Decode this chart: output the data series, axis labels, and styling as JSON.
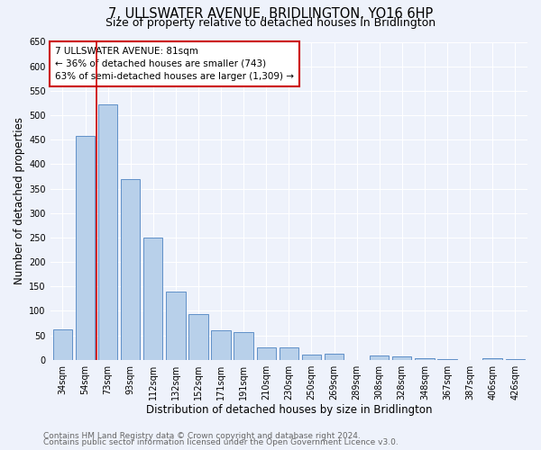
{
  "title": "7, ULLSWATER AVENUE, BRIDLINGTON, YO16 6HP",
  "subtitle": "Size of property relative to detached houses in Bridlington",
  "xlabel": "Distribution of detached houses by size in Bridlington",
  "ylabel": "Number of detached properties",
  "categories": [
    "34sqm",
    "54sqm",
    "73sqm",
    "93sqm",
    "112sqm",
    "132sqm",
    "152sqm",
    "171sqm",
    "191sqm",
    "210sqm",
    "230sqm",
    "250sqm",
    "269sqm",
    "289sqm",
    "308sqm",
    "328sqm",
    "348sqm",
    "367sqm",
    "387sqm",
    "406sqm",
    "426sqm"
  ],
  "values": [
    62,
    457,
    523,
    369,
    250,
    140,
    93,
    60,
    56,
    25,
    25,
    10,
    13,
    0,
    8,
    6,
    3,
    2,
    0,
    4,
    2
  ],
  "bar_color": "#b8d0ea",
  "bar_edge_color": "#6090c8",
  "vline_color": "#cc0000",
  "vline_x_index": 2,
  "annotation_text": "7 ULLSWATER AVENUE: 81sqm\n← 36% of detached houses are smaller (743)\n63% of semi-detached houses are larger (1,309) →",
  "annotation_box_color": "#ffffff",
  "annotation_box_edge": "#cc0000",
  "ylim": [
    0,
    650
  ],
  "yticks": [
    0,
    50,
    100,
    150,
    200,
    250,
    300,
    350,
    400,
    450,
    500,
    550,
    600,
    650
  ],
  "footer1": "Contains HM Land Registry data © Crown copyright and database right 2024.",
  "footer2": "Contains public sector information licensed under the Open Government Licence v3.0.",
  "bg_color": "#eef2fb",
  "title_fontsize": 10.5,
  "subtitle_fontsize": 9,
  "axis_label_fontsize": 8.5,
  "tick_fontsize": 7,
  "footer_fontsize": 6.5,
  "annotation_fontsize": 7.5
}
